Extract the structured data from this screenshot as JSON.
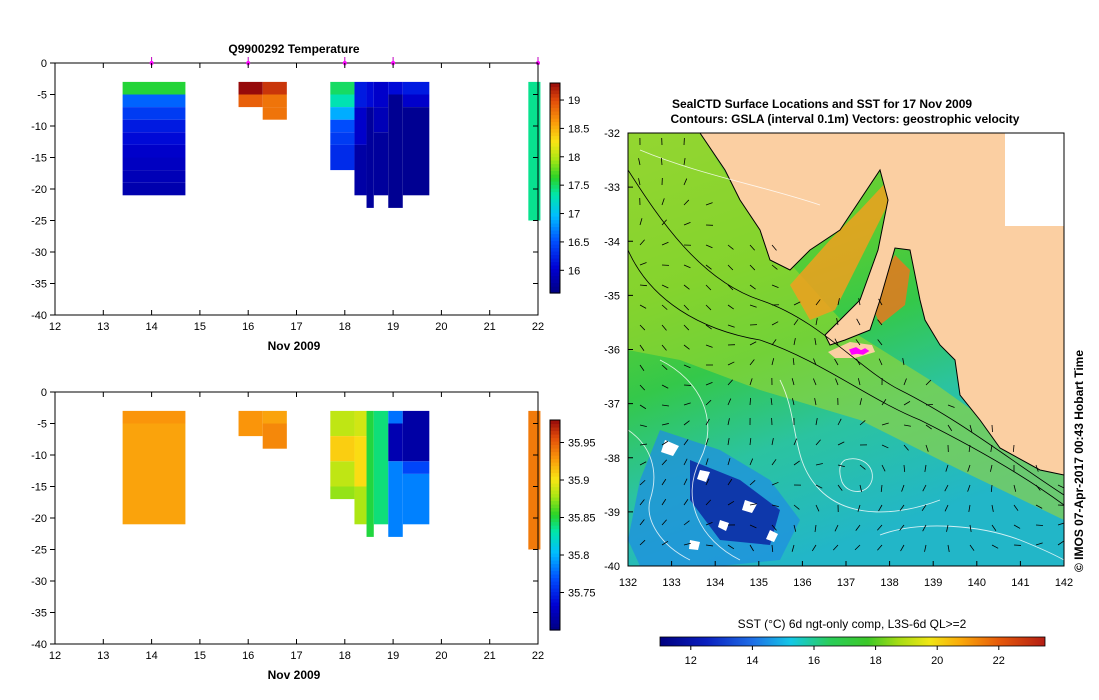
{
  "chart_data": [
    {
      "type": "heatmap",
      "title": "Q9900292  Temperature",
      "xlabel": "Nov 2009",
      "ylabel": "",
      "xlim": [
        12,
        22
      ],
      "ylim": [
        -40,
        0
      ],
      "xticks": [
        "12",
        "13",
        "14",
        "15",
        "16",
        "17",
        "18",
        "19",
        "20",
        "21",
        "22"
      ],
      "yticks": [
        "0",
        "-5",
        "-10",
        "-15",
        "-20",
        "-25",
        "-30",
        "-35",
        "-40"
      ],
      "profile_markers_day": [
        14,
        16,
        18,
        19,
        22
      ],
      "colorbar": {
        "min": 15.6,
        "max": 19.3,
        "ticks": [
          "16",
          "16.5",
          "17",
          "17.5",
          "18",
          "18.5",
          "19"
        ],
        "tick_values": [
          16,
          16.5,
          17,
          17.5,
          18,
          18.5,
          19
        ]
      },
      "cells": [
        {
          "x0": 13.4,
          "x1": 14.7,
          "y0": -3,
          "y1": -5,
          "v": 17.6
        },
        {
          "x0": 13.4,
          "x1": 14.7,
          "y0": -5,
          "y1": -7,
          "v": 16.6
        },
        {
          "x0": 13.4,
          "x1": 14.7,
          "y0": -7,
          "y1": -9,
          "v": 16.4
        },
        {
          "x0": 13.4,
          "x1": 14.7,
          "y0": -9,
          "y1": -11,
          "v": 16.2
        },
        {
          "x0": 13.4,
          "x1": 14.7,
          "y0": -11,
          "y1": -13,
          "v": 16.1
        },
        {
          "x0": 13.4,
          "x1": 14.7,
          "y0": -13,
          "y1": -15,
          "v": 16.0
        },
        {
          "x0": 13.4,
          "x1": 14.7,
          "y0": -15,
          "y1": -17,
          "v": 15.95
        },
        {
          "x0": 13.4,
          "x1": 14.7,
          "y0": -17,
          "y1": -19,
          "v": 15.9
        },
        {
          "x0": 13.4,
          "x1": 14.7,
          "y0": -19,
          "y1": -21,
          "v": 15.85
        },
        {
          "x0": 15.8,
          "x1": 16.3,
          "y0": -3,
          "y1": -5,
          "v": 19.3
        },
        {
          "x0": 16.3,
          "x1": 16.8,
          "y0": -3,
          "y1": -5,
          "v": 19.1
        },
        {
          "x0": 15.8,
          "x1": 16.3,
          "y0": -5,
          "y1": -7,
          "v": 18.9
        },
        {
          "x0": 16.3,
          "x1": 16.8,
          "y0": -5,
          "y1": -7,
          "v": 18.8
        },
        {
          "x0": 16.3,
          "x1": 16.8,
          "y0": -7,
          "y1": -9,
          "v": 18.8
        },
        {
          "x0": 17.7,
          "x1": 18.2,
          "y0": -3,
          "y1": -5,
          "v": 17.5
        },
        {
          "x0": 17.7,
          "x1": 18.2,
          "y0": -5,
          "y1": -7,
          "v": 17.3
        },
        {
          "x0": 17.7,
          "x1": 18.2,
          "y0": -7,
          "y1": -9,
          "v": 16.9
        },
        {
          "x0": 17.7,
          "x1": 18.2,
          "y0": -9,
          "y1": -11,
          "v": 16.5
        },
        {
          "x0": 17.7,
          "x1": 18.2,
          "y0": -11,
          "y1": -13,
          "v": 16.4
        },
        {
          "x0": 17.7,
          "x1": 18.2,
          "y0": -13,
          "y1": -17,
          "v": 16.3
        },
        {
          "x0": 18.2,
          "x1": 18.45,
          "y0": -3,
          "y1": -7,
          "v": 16.2
        },
        {
          "x0": 18.2,
          "x1": 18.45,
          "y0": -7,
          "y1": -13,
          "v": 16.0
        },
        {
          "x0": 18.2,
          "x1": 18.45,
          "y0": -13,
          "y1": -21,
          "v": 15.8
        },
        {
          "x0": 18.45,
          "x1": 18.6,
          "y0": -3,
          "y1": -7,
          "v": 16.1
        },
        {
          "x0": 18.45,
          "x1": 18.6,
          "y0": -7,
          "y1": -23,
          "v": 15.75
        },
        {
          "x0": 18.6,
          "x1": 18.9,
          "y0": -3,
          "y1": -7,
          "v": 16.0
        },
        {
          "x0": 18.6,
          "x1": 18.9,
          "y0": -7,
          "y1": -11,
          "v": 15.9
        },
        {
          "x0": 18.6,
          "x1": 18.9,
          "y0": -11,
          "y1": -21,
          "v": 15.75
        },
        {
          "x0": 18.9,
          "x1": 19.2,
          "y0": -3,
          "y1": -5,
          "v": 16.1
        },
        {
          "x0": 18.9,
          "x1": 19.2,
          "y0": -5,
          "y1": -23,
          "v": 15.7
        },
        {
          "x0": 19.2,
          "x1": 19.75,
          "y0": -3,
          "y1": -5,
          "v": 16.2
        },
        {
          "x0": 19.2,
          "x1": 19.75,
          "y0": -5,
          "y1": -7,
          "v": 16.0
        },
        {
          "x0": 19.2,
          "x1": 19.75,
          "y0": -7,
          "y1": -21,
          "v": 15.7
        },
        {
          "x0": 21.8,
          "x1": 22.05,
          "y0": -3,
          "y1": -25,
          "v": 17.4
        }
      ]
    },
    {
      "type": "heatmap",
      "title": "",
      "xlabel": "Nov 2009",
      "ylabel": "",
      "xlim": [
        12,
        22
      ],
      "ylim": [
        -40,
        0
      ],
      "xticks": [
        "12",
        "13",
        "14",
        "15",
        "16",
        "17",
        "18",
        "19",
        "20",
        "21",
        "22"
      ],
      "yticks": [
        "0",
        "-5",
        "-10",
        "-15",
        "-20",
        "-25",
        "-30",
        "-35",
        "-40"
      ],
      "colorbar": {
        "min": 35.7,
        "max": 35.98,
        "ticks": [
          "35.75",
          "35.8",
          "35.85",
          "35.9",
          "35.95"
        ],
        "tick_values": [
          35.75,
          35.8,
          35.85,
          35.9,
          35.95
        ]
      },
      "cells": [
        {
          "x0": 13.4,
          "x1": 14.7,
          "y0": -3,
          "y1": -5,
          "v": 35.93
        },
        {
          "x0": 13.4,
          "x1": 14.7,
          "y0": -5,
          "y1": -15,
          "v": 35.925
        },
        {
          "x0": 13.4,
          "x1": 14.7,
          "y0": -15,
          "y1": -21,
          "v": 35.925
        },
        {
          "x0": 15.8,
          "x1": 16.3,
          "y0": -3,
          "y1": -7,
          "v": 35.93
        },
        {
          "x0": 16.3,
          "x1": 16.8,
          "y0": -3,
          "y1": -5,
          "v": 35.925
        },
        {
          "x0": 16.3,
          "x1": 16.8,
          "y0": -5,
          "y1": -9,
          "v": 35.935
        },
        {
          "x0": 17.7,
          "x1": 18.2,
          "y0": -3,
          "y1": -7,
          "v": 35.885
        },
        {
          "x0": 17.7,
          "x1": 18.2,
          "y0": -7,
          "y1": -11,
          "v": 35.91
        },
        {
          "x0": 17.7,
          "x1": 18.2,
          "y0": -11,
          "y1": -15,
          "v": 35.885
        },
        {
          "x0": 17.7,
          "x1": 18.2,
          "y0": -15,
          "y1": -17,
          "v": 35.875
        },
        {
          "x0": 18.2,
          "x1": 18.45,
          "y0": -3,
          "y1": -7,
          "v": 35.89
        },
        {
          "x0": 18.2,
          "x1": 18.45,
          "y0": -7,
          "y1": -15,
          "v": 35.905
        },
        {
          "x0": 18.2,
          "x1": 18.45,
          "y0": -15,
          "y1": -21,
          "v": 35.88
        },
        {
          "x0": 18.45,
          "x1": 18.6,
          "y0": -3,
          "y1": -23,
          "v": 35.85
        },
        {
          "x0": 18.6,
          "x1": 18.9,
          "y0": -3,
          "y1": -21,
          "v": 35.84
        },
        {
          "x0": 18.9,
          "x1": 19.2,
          "y0": -3,
          "y1": -5,
          "v": 35.78
        },
        {
          "x0": 18.9,
          "x1": 19.2,
          "y0": -5,
          "y1": -11,
          "v": 35.72
        },
        {
          "x0": 18.9,
          "x1": 19.2,
          "y0": -11,
          "y1": -23,
          "v": 35.785
        },
        {
          "x0": 19.2,
          "x1": 19.75,
          "y0": -3,
          "y1": -11,
          "v": 35.715
        },
        {
          "x0": 19.2,
          "x1": 19.75,
          "y0": -11,
          "y1": -13,
          "v": 35.765
        },
        {
          "x0": 19.2,
          "x1": 19.75,
          "y0": -13,
          "y1": -21,
          "v": 35.785
        },
        {
          "x0": 21.8,
          "x1": 22.05,
          "y0": -3,
          "y1": -25,
          "v": 35.94
        }
      ]
    },
    {
      "type": "heatmap",
      "title": "SealCTD Surface Locations and SST for 17 Nov 2009",
      "subtitle": "Contours: GSLA (interval 0.1m) Vectors: geostrophic velocity",
      "xlabel": "",
      "ylabel": "",
      "xlim": [
        132,
        142
      ],
      "ylim": [
        -40,
        -32
      ],
      "xticks": [
        "132",
        "133",
        "134",
        "135",
        "136",
        "137",
        "138",
        "139",
        "140",
        "141",
        "142"
      ],
      "yticks": [
        "-32",
        "-33",
        "-34",
        "-35",
        "-36",
        "-37",
        "-38",
        "-39",
        "-40"
      ],
      "land_color": "#fbcfa2",
      "colorbar": {
        "label": "SST (°C) 6d ngt-only comp, L3S-6d QL>=2",
        "min": 11,
        "max": 23.5,
        "ticks": [
          "12",
          "14",
          "16",
          "18",
          "20",
          "22"
        ],
        "tick_values": [
          12,
          14,
          16,
          18,
          20,
          22
        ]
      },
      "seal_track_color": "#ff00ff",
      "side_annotation": "© IMOS 07-Apr-2017 00:43 Hobart Time"
    }
  ]
}
